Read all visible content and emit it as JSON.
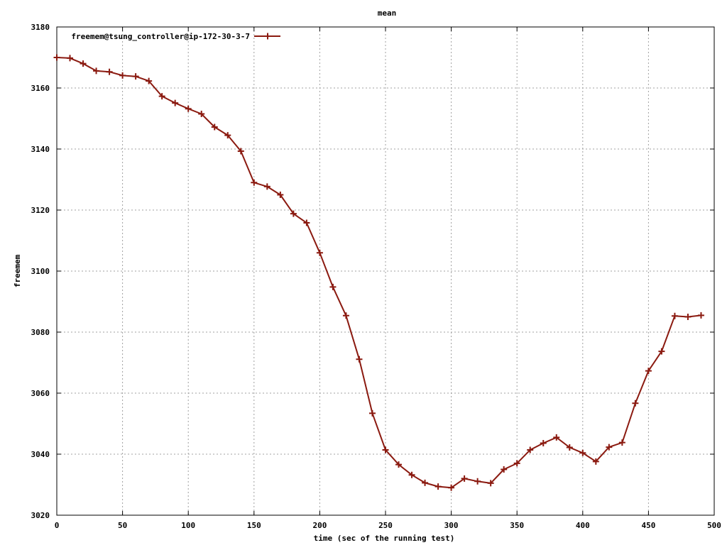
{
  "chart_data": {
    "type": "line",
    "title": "mean",
    "xlabel": "time (sec of the running test)",
    "ylabel": "freemem",
    "xlim": [
      0,
      500
    ],
    "ylim": [
      3020,
      3180
    ],
    "xticks": [
      0,
      50,
      100,
      150,
      200,
      250,
      300,
      350,
      400,
      450,
      500
    ],
    "yticks": [
      3020,
      3040,
      3060,
      3080,
      3100,
      3120,
      3140,
      3160,
      3180
    ],
    "grid": true,
    "legend_position": "top-left",
    "series": [
      {
        "name": "freemem@tsung_controller@ip-172-30-3-7",
        "color": "#8b1a10",
        "marker": "plus",
        "x": [
          0,
          10,
          20,
          30,
          40,
          50,
          60,
          70,
          80,
          90,
          100,
          110,
          120,
          130,
          140,
          150,
          160,
          170,
          180,
          190,
          200,
          210,
          220,
          230,
          240,
          250,
          260,
          270,
          280,
          290,
          300,
          310,
          320,
          330,
          340,
          350,
          360,
          370,
          380,
          390,
          400,
          410,
          420,
          430,
          440,
          450,
          460,
          470,
          480,
          490
        ],
        "y": [
          3170,
          3169.8,
          3168,
          3165.6,
          3165.3,
          3164.1,
          3163.8,
          3162.3,
          3157.3,
          3155.1,
          3153.2,
          3151.5,
          3147.2,
          3144.5,
          3139.3,
          3129,
          3127.7,
          3125,
          3118.8,
          3115.8,
          3106,
          3094.8,
          3085.4,
          3071.1,
          3053.4,
          3041.4,
          3036.6,
          3033.2,
          3030.6,
          3029.4,
          3029,
          3032,
          3031.1,
          3030.5,
          3035,
          3037,
          3041.4,
          3043.6,
          3045.5,
          3042.2,
          3040.4,
          3037.6,
          3042.3,
          3043.8,
          3056.7,
          3067.3,
          3073.7,
          3085.3,
          3085,
          3085.5
        ]
      }
    ]
  }
}
